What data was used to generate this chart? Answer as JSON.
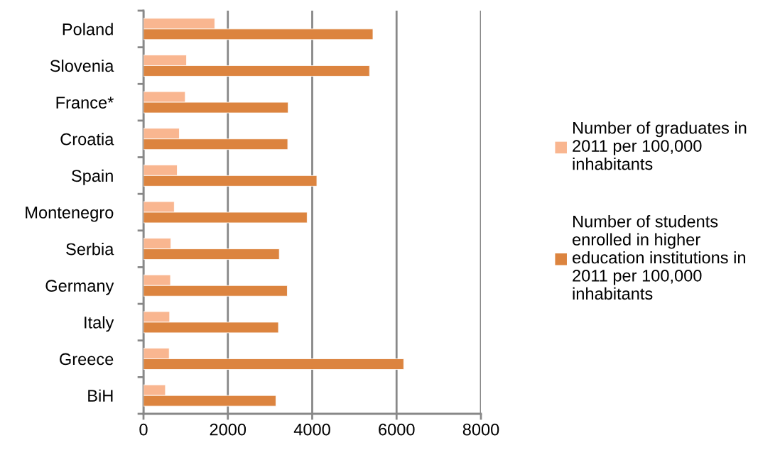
{
  "chart_data": {
    "type": "bar",
    "orientation": "horizontal",
    "categories": [
      "Poland",
      "Slovenia",
      "France*",
      "Croatia",
      "Spain",
      "Montenegro",
      "Serbia",
      "Germany",
      "Italy",
      "Greece",
      "BiH"
    ],
    "series": [
      {
        "name": "Number of graduates in 2011 per 100,000 inhabitants",
        "color": "#f9b690",
        "values": [
          1690,
          1020,
          990,
          850,
          800,
          730,
          650,
          640,
          620,
          610,
          520
        ]
      },
      {
        "name": "Number of students enrolled in higher education institutions in 2011 per 100,000 inhabitants",
        "color": "#dc843f",
        "values": [
          5440,
          5360,
          3430,
          3420,
          4110,
          3880,
          3220,
          3410,
          3200,
          6170,
          3140
        ]
      }
    ],
    "xlim": [
      0,
      8000
    ],
    "xticks": [
      0,
      2000,
      4000,
      6000,
      8000
    ],
    "grid": "x",
    "legend": "right"
  }
}
